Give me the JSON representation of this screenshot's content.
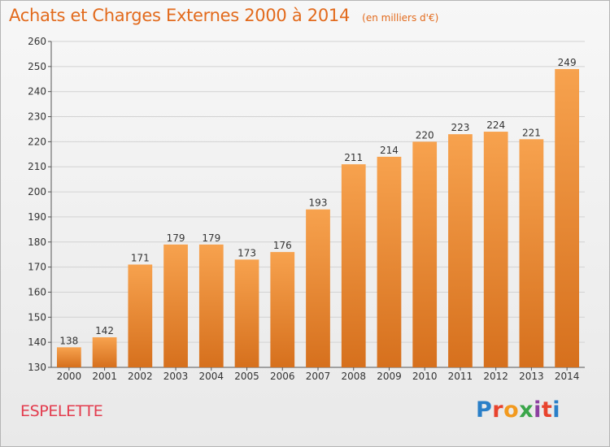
{
  "chart_data": {
    "type": "bar",
    "title": "Achats et Charges Externes 2000 à 2014",
    "subtitle": "(en milliers d'€)",
    "categories": [
      "2000",
      "2001",
      "2002",
      "2003",
      "2004",
      "2005",
      "2006",
      "2007",
      "2008",
      "2009",
      "2010",
      "2011",
      "2012",
      "2013",
      "2014"
    ],
    "values": [
      138,
      142,
      171,
      179,
      179,
      173,
      176,
      193,
      211,
      214,
      220,
      223,
      224,
      221,
      249
    ],
    "ylim": [
      130,
      260
    ],
    "yticks": [
      130,
      140,
      150,
      160,
      170,
      180,
      190,
      200,
      210,
      220,
      230,
      240,
      250,
      260
    ],
    "grid": true,
    "bar_color": "#f3913a",
    "bar_color_dark": "#d6701d",
    "xlabel": "",
    "ylabel": ""
  },
  "location": "ESPELETTE",
  "brand": {
    "text": "Proxiti",
    "colors": [
      "#2a7fc8",
      "#e8432d",
      "#f29a1f",
      "#3aa64a",
      "#8c3fa0",
      "#e8432d",
      "#2a7fc8"
    ]
  }
}
